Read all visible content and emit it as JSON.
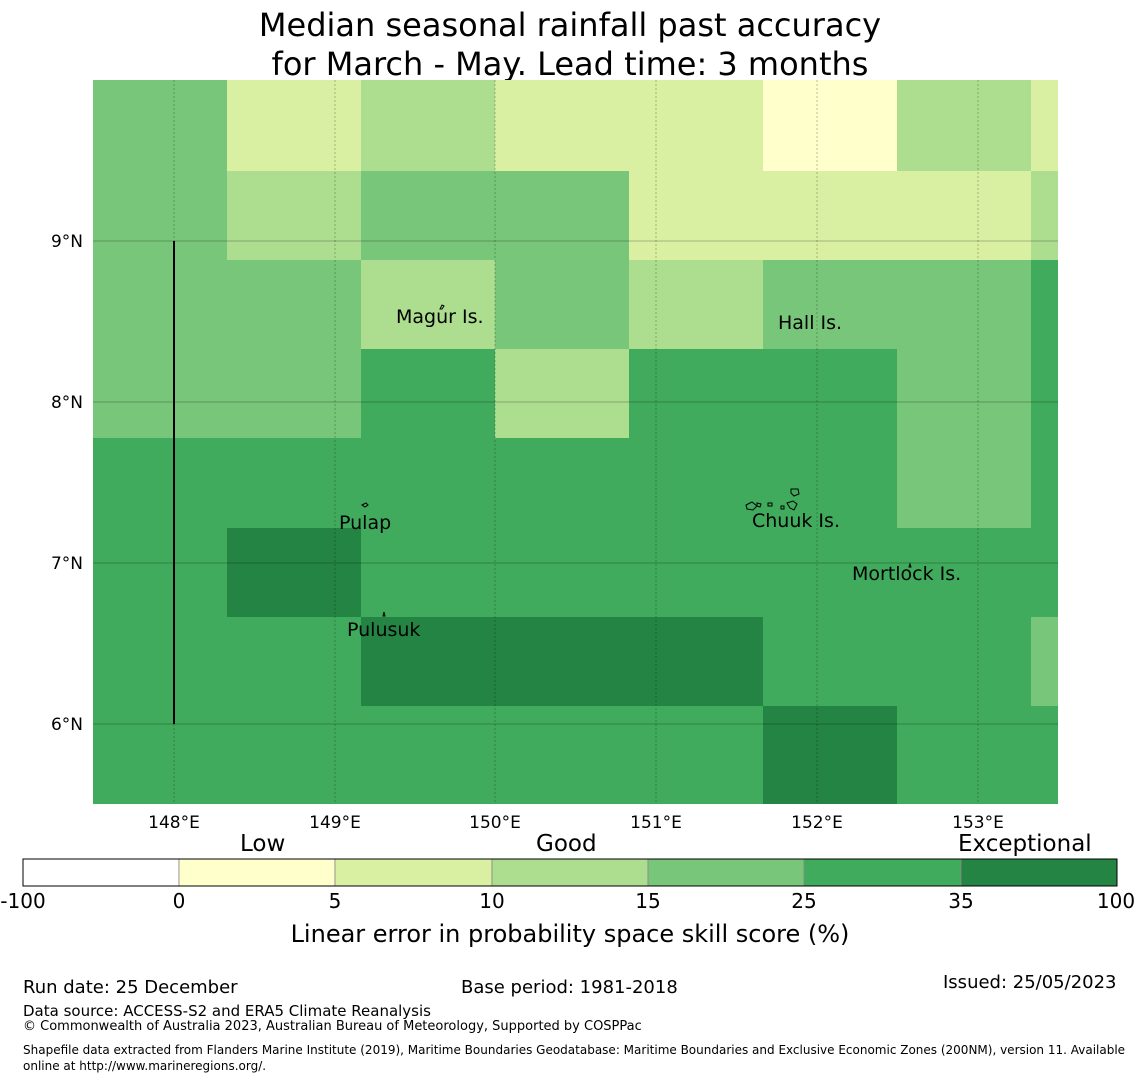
{
  "title": {
    "line1": "Median seasonal rainfall past accuracy",
    "line2": "for March - May. Lead time: 3 months"
  },
  "map": {
    "x_ticks": [
      "148°E",
      "149°E",
      "150°E",
      "151°E",
      "152°E",
      "153°E"
    ],
    "y_ticks": [
      "9°N",
      "8°N",
      "7°N",
      "6°N"
    ],
    "places": [
      {
        "name": "Magur Is."
      },
      {
        "name": "Hall Is."
      },
      {
        "name": "Pulap"
      },
      {
        "name": "Chuuk Is."
      },
      {
        "name": "Mortlock Is."
      },
      {
        "name": "Pulusuk"
      }
    ],
    "grid_scores": [
      [
        3,
        1,
        2,
        1,
        1,
        0,
        2,
        1
      ],
      [
        3,
        2,
        3,
        3,
        1,
        1,
        1,
        2
      ],
      [
        3,
        3,
        2,
        3,
        2,
        3,
        3,
        4
      ],
      [
        3,
        3,
        4,
        2,
        4,
        4,
        3,
        4
      ],
      [
        4,
        4,
        4,
        4,
        4,
        4,
        3,
        4
      ],
      [
        4,
        5,
        4,
        4,
        4,
        4,
        4,
        4
      ],
      [
        4,
        4,
        5,
        5,
        5,
        4,
        4,
        3
      ],
      [
        4,
        4,
        4,
        4,
        4,
        5,
        4,
        4
      ]
    ]
  },
  "colorbar": {
    "categories": [
      "Low",
      "Good",
      "Exceptional"
    ],
    "ticks": [
      "-100",
      "0",
      "5",
      "10",
      "15",
      "25",
      "35",
      "100"
    ],
    "colors": [
      "#ffffff",
      "#ffffcc",
      "#d9f0a3",
      "#addd8e",
      "#78c679",
      "#41ab5d",
      "#238443"
    ],
    "label": "Linear error in probability space skill score (%)"
  },
  "footer": {
    "run_date": "Run date: 25 December",
    "base_period": "Base period: 1981-2018",
    "issued": "Issued: 25/05/2023",
    "data_source": "Data source: ACCESS-S2 and ERA5 Climate Reanalysis",
    "copyright": "© Commonwealth of Australia 2023, Australian Bureau of Meteorology, Supported by COSPPac",
    "shapefile": "Shapefile data extracted from Flanders Marine Institute (2019), Maritime Boundaries Geodatabase: Maritime Boundaries and Exclusive Economic Zones (200NM), version 11. Available online at http://www.marineregions.org/."
  }
}
